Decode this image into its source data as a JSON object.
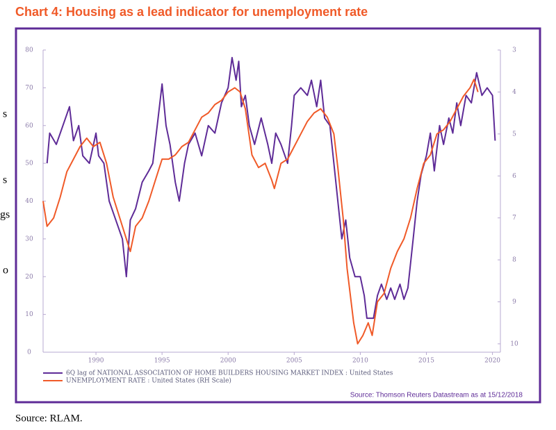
{
  "title": "Chart 4: Housing as a lead indicator for unemployment rate",
  "side_text_fragments": [
    "s",
    "s",
    "gs",
    "o"
  ],
  "chart_data": {
    "type": "line",
    "xlim": [
      1986,
      2020.6
    ],
    "xticks": [
      1990,
      1995,
      2000,
      2005,
      2010,
      2015,
      2020
    ],
    "ylim": [
      0,
      80
    ],
    "yticks": [
      0,
      10,
      20,
      30,
      40,
      50,
      60,
      70,
      80
    ],
    "y2lim": [
      10.2,
      3
    ],
    "y2ticks": [
      3,
      4,
      5,
      6,
      7,
      8,
      9,
      10
    ],
    "grid": false,
    "legend": "bottom-left",
    "source": "Source: Thomson Reuters Datastream as at 15/12/2018",
    "series": [
      {
        "name": "6Q lag of NATIONAL ASSOCIATION OF HOME BUILDERS HOUSING MARKET INDEX : United States",
        "color": "#5e2b97",
        "x": [
          1986.3,
          1986.5,
          1987,
          1987.5,
          1988,
          1988.3,
          1988.7,
          1989,
          1989.5,
          1990,
          1990.2,
          1990.6,
          1991,
          1991.5,
          1992,
          1992.3,
          1992.6,
          1993,
          1993.5,
          1994,
          1994.3,
          1994.7,
          1995,
          1995.3,
          1995.6,
          1996,
          1996.3,
          1996.7,
          1997,
          1997.5,
          1998,
          1998.5,
          1999,
          1999.5,
          2000,
          2000.3,
          2000.6,
          2000.8,
          2001,
          2001.3,
          2001.6,
          2002,
          2002.5,
          2003,
          2003.3,
          2003.6,
          2004,
          2004.5,
          2004.8,
          2005,
          2005.5,
          2006,
          2006.3,
          2006.7,
          2007,
          2007.3,
          2007.7,
          2008,
          2008.3,
          2008.6,
          2008.9,
          2009.2,
          2009.6,
          2010,
          2010.3,
          2010.5,
          2011,
          2011.3,
          2011.6,
          2012,
          2012.3,
          2012.6,
          2013,
          2013.3,
          2013.6,
          2014,
          2014.3,
          2014.6,
          2015,
          2015.3,
          2015.6,
          2016,
          2016.3,
          2016.7,
          2017,
          2017.3,
          2017.6,
          2018,
          2018.4,
          2018.8,
          2019.2,
          2019.6,
          2020,
          2020.2
        ],
        "values": [
          50,
          58,
          55,
          60,
          65,
          56,
          60,
          52,
          50,
          58,
          52,
          50,
          40,
          35,
          30,
          20,
          35,
          38,
          45,
          48,
          50,
          62,
          71,
          60,
          55,
          45,
          40,
          50,
          55,
          58,
          52,
          60,
          58,
          66,
          70,
          78,
          72,
          77,
          65,
          68,
          60,
          55,
          62,
          55,
          50,
          58,
          55,
          50,
          60,
          68,
          70,
          68,
          72,
          65,
          72,
          62,
          60,
          50,
          40,
          30,
          35,
          25,
          20,
          20,
          15,
          9,
          9,
          15,
          18,
          14,
          17,
          14,
          18,
          14,
          17,
          30,
          40,
          47,
          52,
          58,
          48,
          60,
          55,
          62,
          58,
          66,
          60,
          68,
          66,
          74,
          68,
          70,
          68,
          56
        ]
      },
      {
        "name": "UNEMPLOYMENT RATE : United States (RH Scale)",
        "color": "#f05a28",
        "axis": "y2",
        "x": [
          1986,
          1986.3,
          1986.8,
          1987.3,
          1987.8,
          1988.3,
          1988.8,
          1989.3,
          1989.8,
          1990.3,
          1990.8,
          1991.3,
          1991.8,
          1992.3,
          1992.6,
          1993,
          1993.5,
          1994,
          1994.5,
          1995,
          1995.5,
          1996,
          1996.5,
          1997,
          1997.5,
          1998,
          1998.5,
          1999,
          1999.5,
          2000,
          2000.5,
          2000.9,
          2001.3,
          2001.8,
          2002.3,
          2002.8,
          2003.3,
          2003.5,
          2004,
          2004.5,
          2005,
          2005.5,
          2006,
          2006.5,
          2007,
          2007.5,
          2008,
          2008.3,
          2008.7,
          2009,
          2009.5,
          2009.8,
          2010.2,
          2010.6,
          2010.9,
          2011.3,
          2011.8,
          2012.3,
          2012.8,
          2013.3,
          2013.8,
          2014.3,
          2014.8,
          2015.3,
          2015.8,
          2016.3,
          2016.8,
          2017.3,
          2017.8,
          2018.3,
          2018.6,
          2018.9
        ],
        "values": [
          6.6,
          7.2,
          7.0,
          6.5,
          5.9,
          5.6,
          5.3,
          5.1,
          5.3,
          5.2,
          5.7,
          6.5,
          7.0,
          7.5,
          7.8,
          7.2,
          7.0,
          6.6,
          6.1,
          5.6,
          5.6,
          5.5,
          5.3,
          5.2,
          4.9,
          4.6,
          4.5,
          4.3,
          4.2,
          4.0,
          3.9,
          4.0,
          4.4,
          5.5,
          5.8,
          5.7,
          6.1,
          6.3,
          5.7,
          5.6,
          5.3,
          5.0,
          4.7,
          4.5,
          4.4,
          4.6,
          5.0,
          5.8,
          7.0,
          8.2,
          9.5,
          10.0,
          9.8,
          9.5,
          9.8,
          9.0,
          8.8,
          8.2,
          7.8,
          7.5,
          7.0,
          6.3,
          5.7,
          5.5,
          5.0,
          4.9,
          4.7,
          4.4,
          4.1,
          3.9,
          3.7,
          4.0
        ]
      }
    ]
  },
  "footer": "Source: RLAM."
}
